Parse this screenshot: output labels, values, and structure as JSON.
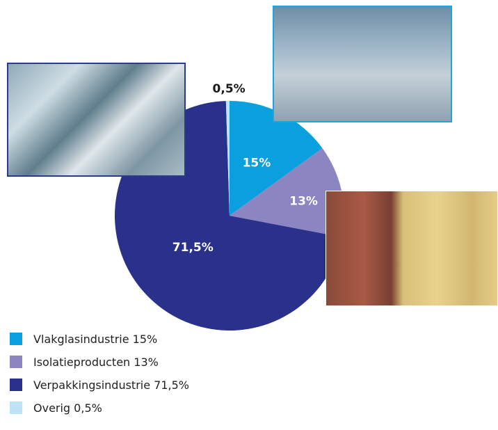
{
  "chart_data": {
    "type": "pie",
    "series": [
      {
        "label": "Vlakglasindustrie",
        "value": 15,
        "slice_label": "15%",
        "legend_text": "Vlakglasindustrie 15%",
        "color": "#0a9fdf",
        "label_color": "#ffffff"
      },
      {
        "label": "Isolatieproducten",
        "value": 13,
        "slice_label": "13%",
        "legend_text": "Isolatieproducten 13%",
        "color": "#8b86c2",
        "label_color": "#ffffff"
      },
      {
        "label": "Verpakkingsindustrie",
        "value": 71.5,
        "slice_label": "71,5%",
        "legend_text": "Verpakkingsindustrie 71,5%",
        "color": "#2a318a",
        "label_color": "#ffffff"
      },
      {
        "label": "Overig",
        "value": 0.5,
        "slice_label": "0,5%",
        "legend_text": "Overig 0,5%",
        "color": "#bfe3f6",
        "label_color": "#1a1a1a"
      }
    ],
    "start_angle_deg": 0,
    "direction": "clockwise"
  }
}
